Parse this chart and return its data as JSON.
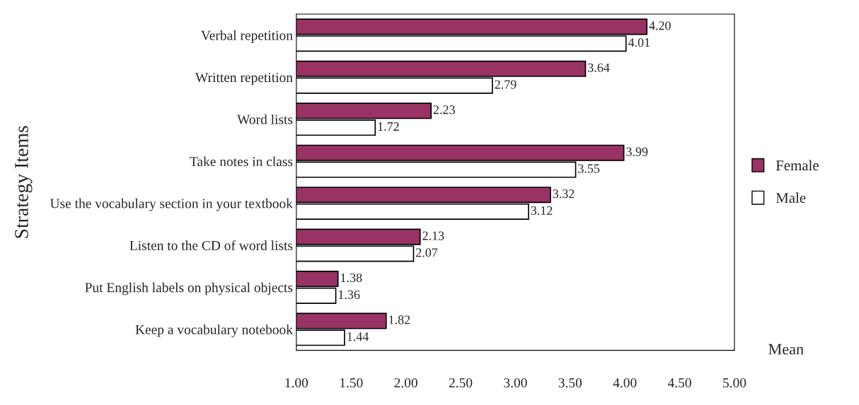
{
  "chart_data": {
    "type": "bar",
    "orientation": "horizontal",
    "xlabel": "Mean",
    "ylabel": "Strategy Items",
    "categories": [
      "Verbal repetition",
      "Written repetition",
      "Word lists",
      "Take notes in class",
      "Use the vocabulary section in your textbook",
      "Listen to the CD of word lists",
      "Put English labels on physical objects",
      "Keep a vocabulary notebook"
    ],
    "series": [
      {
        "name": "Female",
        "color": "#993366",
        "values": [
          4.2,
          3.64,
          2.23,
          3.99,
          3.32,
          2.13,
          1.38,
          1.82
        ],
        "value_labels": [
          "4.20",
          "3.64",
          "2.23",
          "3.99",
          "3.32",
          "2.13",
          "1.38",
          "1.82"
        ]
      },
      {
        "name": "Male",
        "color": "#ffffff",
        "values": [
          4.01,
          2.79,
          1.72,
          3.55,
          3.12,
          2.07,
          1.36,
          1.44
        ],
        "value_labels": [
          "4.01",
          "2.79",
          "1.72",
          "3.55",
          "3.12",
          "2.07",
          "1.36",
          "1.44"
        ]
      }
    ],
    "xlim": [
      1,
      5
    ],
    "xticks": [
      {
        "value": 1,
        "label": "1.00"
      },
      {
        "value": 1.5,
        "label": "1.50"
      },
      {
        "value": 2,
        "label": "2.00"
      },
      {
        "value": 2.5,
        "label": "2.50"
      },
      {
        "value": 3,
        "label": "3.00"
      },
      {
        "value": 3.5,
        "label": "3.50"
      },
      {
        "value": 4,
        "label": "4.00"
      },
      {
        "value": 4.5,
        "label": "4.50"
      },
      {
        "value": 5,
        "label": "5.00"
      }
    ],
    "grid": false,
    "legend": "right"
  }
}
